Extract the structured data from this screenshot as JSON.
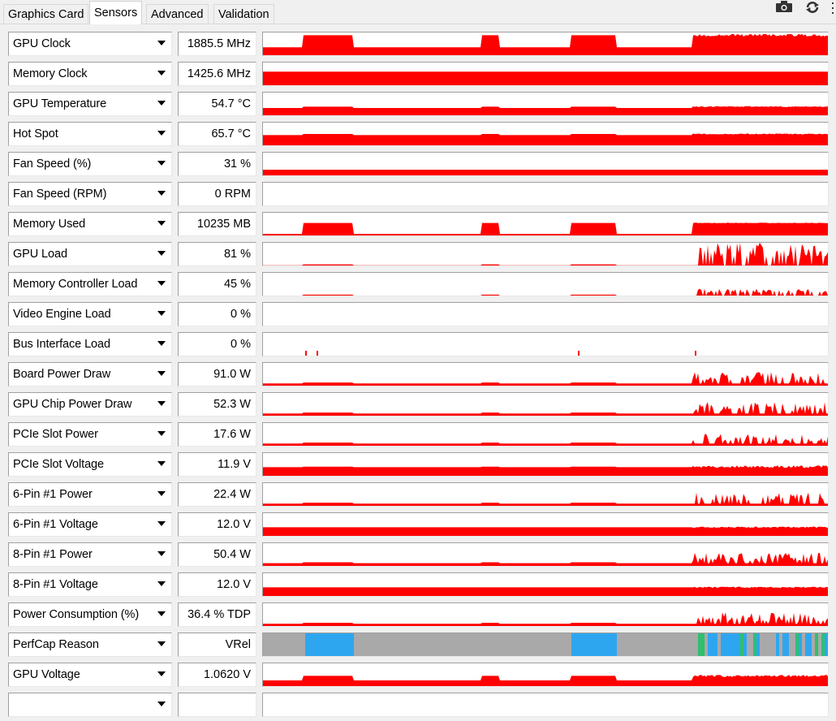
{
  "tabs": [
    {
      "label": "Graphics Card",
      "active": false
    },
    {
      "label": "Sensors",
      "active": true
    },
    {
      "label": "Advanced",
      "active": false
    },
    {
      "label": "Validation",
      "active": false
    }
  ],
  "toolbar": {
    "icons": [
      "camera-icon",
      "refresh-icon",
      "menu-icon"
    ]
  },
  "colors": {
    "graph": "#ff0000",
    "perfcap_idle": "#a9a9a9",
    "perfcap_vrel": "#2ea6ef",
    "perfcap_other": "#2fbf6f"
  },
  "sensors": [
    {
      "name": "GPU Clock",
      "value": "1885.5 MHz",
      "graph": {
        "type": "area",
        "base": 0.35,
        "active": 0.88,
        "noise": 0.06
      }
    },
    {
      "name": "Memory Clock",
      "value": "1425.6 MHz",
      "graph": {
        "type": "area",
        "base": 0.6,
        "active": 0.6,
        "noise": 0
      }
    },
    {
      "name": "GPU Temperature",
      "value": "54.7 °C",
      "graph": {
        "type": "area",
        "base": 0.32,
        "active": 0.38,
        "noise": 0.02
      }
    },
    {
      "name": "Hot Spot",
      "value": "65.7 °C",
      "graph": {
        "type": "area",
        "base": 0.45,
        "active": 0.5,
        "noise": 0.02
      }
    },
    {
      "name": "Fan Speed (%)",
      "value": "31 %",
      "graph": {
        "type": "area",
        "base": 0.25,
        "active": 0.25,
        "noise": 0
      }
    },
    {
      "name": "Fan Speed (RPM)",
      "value": "0 RPM",
      "graph": {
        "type": "none"
      }
    },
    {
      "name": "Memory Used",
      "value": "10235 MB",
      "graph": {
        "type": "area",
        "base": 0.07,
        "active": 0.55,
        "noise": 0.01
      }
    },
    {
      "name": "GPU Load",
      "value": "81 %",
      "graph": {
        "type": "spiky",
        "base": 0.01,
        "active": 0.7,
        "noise": 0.3
      }
    },
    {
      "name": "Memory Controller Load",
      "value": "45 %",
      "graph": {
        "type": "spiky",
        "base": 0.0,
        "active": 0.2,
        "noise": 0.2
      }
    },
    {
      "name": "Video Engine Load",
      "value": "0 %",
      "graph": {
        "type": "none"
      }
    },
    {
      "name": "Bus Interface Load",
      "value": "0 %",
      "graph": {
        "type": "dots"
      }
    },
    {
      "name": "Board Power Draw",
      "value": "91.0 W",
      "graph": {
        "type": "spiky",
        "base": 0.1,
        "active": 0.4,
        "noise": 0.35
      }
    },
    {
      "name": "GPU Chip Power Draw",
      "value": "52.3 W",
      "graph": {
        "type": "spiky",
        "base": 0.1,
        "active": 0.4,
        "noise": 0.35
      }
    },
    {
      "name": "PCIe Slot Power",
      "value": "17.6 W",
      "graph": {
        "type": "spiky",
        "base": 0.1,
        "active": 0.35,
        "noise": 0.35
      }
    },
    {
      "name": "PCIe Slot Voltage",
      "value": "11.9 V",
      "graph": {
        "type": "area",
        "base": 0.38,
        "active": 0.4,
        "noise": 0.06
      }
    },
    {
      "name": "6-Pin #1 Power",
      "value": "22.4 W",
      "graph": {
        "type": "spiky",
        "base": 0.1,
        "active": 0.4,
        "noise": 0.35
      }
    },
    {
      "name": "6-Pin #1 Voltage",
      "value": "12.0 V",
      "graph": {
        "type": "area",
        "base": 0.38,
        "active": 0.38,
        "noise": 0.03
      }
    },
    {
      "name": "8-Pin #1 Power",
      "value": "50.4 W",
      "graph": {
        "type": "spiky",
        "base": 0.12,
        "active": 0.4,
        "noise": 0.35
      }
    },
    {
      "name": "8-Pin #1 Voltage",
      "value": "12.0 V",
      "graph": {
        "type": "area",
        "base": 0.38,
        "active": 0.38,
        "noise": 0.03
      }
    },
    {
      "name": "Power Consumption (%)",
      "value": "36.4 % TDP",
      "graph": {
        "type": "spiky",
        "base": 0.1,
        "active": 0.4,
        "noise": 0.35
      }
    },
    {
      "name": "PerfCap Reason",
      "value": "VRel",
      "graph": {
        "type": "perfcap"
      }
    },
    {
      "name": "GPU Voltage",
      "value": "1.0620 V",
      "graph": {
        "type": "area",
        "base": 0.25,
        "active": 0.45,
        "noise": 0.05
      }
    },
    {
      "name": "",
      "value": "",
      "graph": {
        "type": "none"
      }
    }
  ]
}
